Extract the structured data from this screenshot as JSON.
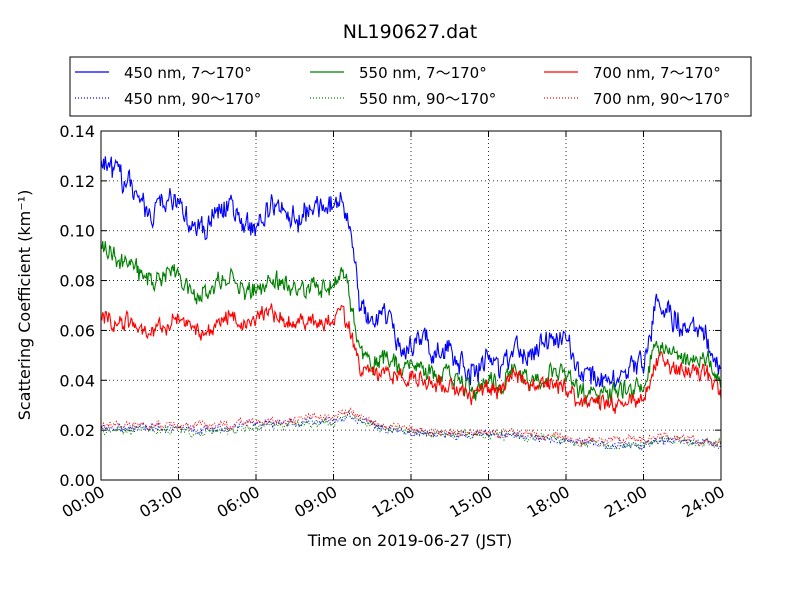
{
  "chart_data": {
    "type": "line",
    "title": "NL190627.dat",
    "xlabel": "Time on 2019-06-27 (JST)",
    "ylabel": "Scattering Coefficient (km⁻¹)",
    "x_ticks": [
      "00:00",
      "03:00",
      "06:00",
      "09:00",
      "12:00",
      "15:00",
      "18:00",
      "21:00",
      "24:00"
    ],
    "x_range_hours": [
      0,
      24
    ],
    "ylim": [
      0.0,
      0.14
    ],
    "y_ticks": [
      "0.00",
      "0.02",
      "0.04",
      "0.06",
      "0.08",
      "0.10",
      "0.12",
      "0.14"
    ],
    "grid": true,
    "legend_placement": "top (above plot)",
    "x_knots_hours": [
      0,
      0.5,
      1,
      1.5,
      2,
      2.5,
      3,
      3.5,
      4,
      4.5,
      5,
      5.5,
      6,
      6.5,
      7,
      7.5,
      8,
      8.5,
      9,
      9.3,
      9.6,
      10,
      10.5,
      11,
      11.5,
      12,
      12.5,
      13,
      13.5,
      14,
      14.5,
      15,
      15.5,
      16,
      16.5,
      17,
      17.5,
      18,
      18.5,
      19,
      19.5,
      20,
      20.5,
      21,
      21.5,
      22,
      22.5,
      23,
      23.5,
      24
    ],
    "series": [
      {
        "name": "450 nm, 7～170°",
        "color": "#0000ff",
        "style": "solid",
        "noise": 0.004,
        "values": [
          0.13,
          0.124,
          0.118,
          0.113,
          0.108,
          0.112,
          0.112,
          0.102,
          0.101,
          0.108,
          0.11,
          0.101,
          0.101,
          0.108,
          0.109,
          0.105,
          0.107,
          0.11,
          0.11,
          0.113,
          0.105,
          0.07,
          0.063,
          0.068,
          0.054,
          0.055,
          0.055,
          0.05,
          0.052,
          0.045,
          0.043,
          0.05,
          0.045,
          0.052,
          0.05,
          0.056,
          0.055,
          0.056,
          0.044,
          0.04,
          0.04,
          0.043,
          0.046,
          0.045,
          0.072,
          0.066,
          0.06,
          0.06,
          0.055,
          0.042
        ]
      },
      {
        "name": "550 nm, 7～170°",
        "color": "#008000",
        "style": "solid",
        "noise": 0.0032,
        "values": [
          0.094,
          0.09,
          0.087,
          0.083,
          0.08,
          0.082,
          0.084,
          0.075,
          0.074,
          0.079,
          0.082,
          0.076,
          0.076,
          0.08,
          0.08,
          0.077,
          0.077,
          0.078,
          0.08,
          0.083,
          0.076,
          0.052,
          0.047,
          0.05,
          0.045,
          0.046,
          0.045,
          0.041,
          0.043,
          0.038,
          0.036,
          0.041,
          0.037,
          0.045,
          0.04,
          0.042,
          0.042,
          0.042,
          0.035,
          0.033,
          0.033,
          0.035,
          0.036,
          0.037,
          0.056,
          0.052,
          0.049,
          0.05,
          0.047,
          0.038
        ]
      },
      {
        "name": "700 nm, 7～170°",
        "color": "#ff0000",
        "style": "solid",
        "noise": 0.0028,
        "values": [
          0.066,
          0.064,
          0.063,
          0.061,
          0.059,
          0.062,
          0.066,
          0.06,
          0.058,
          0.062,
          0.068,
          0.063,
          0.064,
          0.067,
          0.066,
          0.063,
          0.064,
          0.062,
          0.064,
          0.068,
          0.062,
          0.045,
          0.042,
          0.044,
          0.04,
          0.041,
          0.041,
          0.038,
          0.038,
          0.035,
          0.034,
          0.038,
          0.035,
          0.043,
          0.037,
          0.039,
          0.039,
          0.037,
          0.031,
          0.03,
          0.03,
          0.031,
          0.032,
          0.032,
          0.048,
          0.045,
          0.044,
          0.045,
          0.042,
          0.035
        ]
      },
      {
        "name": "450 nm, 90～170°",
        "color": "#0000ff",
        "style": "dotted",
        "noise": 0.0013,
        "values": [
          0.021,
          0.021,
          0.021,
          0.021,
          0.021,
          0.021,
          0.021,
          0.02,
          0.02,
          0.021,
          0.021,
          0.022,
          0.022,
          0.023,
          0.023,
          0.023,
          0.024,
          0.024,
          0.024,
          0.025,
          0.026,
          0.024,
          0.022,
          0.021,
          0.02,
          0.019,
          0.019,
          0.018,
          0.018,
          0.018,
          0.018,
          0.018,
          0.018,
          0.018,
          0.017,
          0.017,
          0.017,
          0.016,
          0.015,
          0.015,
          0.014,
          0.014,
          0.014,
          0.014,
          0.016,
          0.016,
          0.016,
          0.015,
          0.015,
          0.014
        ]
      },
      {
        "name": "550 nm, 90～170°",
        "color": "#008000",
        "style": "dotted",
        "noise": 0.0013,
        "values": [
          0.02,
          0.02,
          0.02,
          0.02,
          0.02,
          0.02,
          0.02,
          0.019,
          0.019,
          0.02,
          0.02,
          0.021,
          0.021,
          0.022,
          0.022,
          0.022,
          0.023,
          0.023,
          0.023,
          0.025,
          0.026,
          0.024,
          0.022,
          0.021,
          0.02,
          0.019,
          0.019,
          0.018,
          0.018,
          0.018,
          0.018,
          0.018,
          0.018,
          0.018,
          0.017,
          0.017,
          0.017,
          0.016,
          0.015,
          0.015,
          0.014,
          0.014,
          0.014,
          0.014,
          0.016,
          0.016,
          0.016,
          0.015,
          0.015,
          0.014
        ]
      },
      {
        "name": "700 nm, 90～170°",
        "color": "#ff0000",
        "style": "dotted",
        "noise": 0.0013,
        "values": [
          0.022,
          0.022,
          0.022,
          0.022,
          0.022,
          0.022,
          0.022,
          0.022,
          0.022,
          0.022,
          0.022,
          0.023,
          0.023,
          0.024,
          0.024,
          0.024,
          0.025,
          0.025,
          0.025,
          0.027,
          0.027,
          0.025,
          0.023,
          0.022,
          0.021,
          0.02,
          0.02,
          0.019,
          0.019,
          0.019,
          0.019,
          0.019,
          0.019,
          0.019,
          0.018,
          0.018,
          0.018,
          0.017,
          0.016,
          0.016,
          0.016,
          0.016,
          0.016,
          0.016,
          0.017,
          0.017,
          0.017,
          0.016,
          0.016,
          0.015
        ]
      }
    ],
    "legend_order": [
      0,
      3,
      1,
      4,
      2,
      5
    ]
  }
}
